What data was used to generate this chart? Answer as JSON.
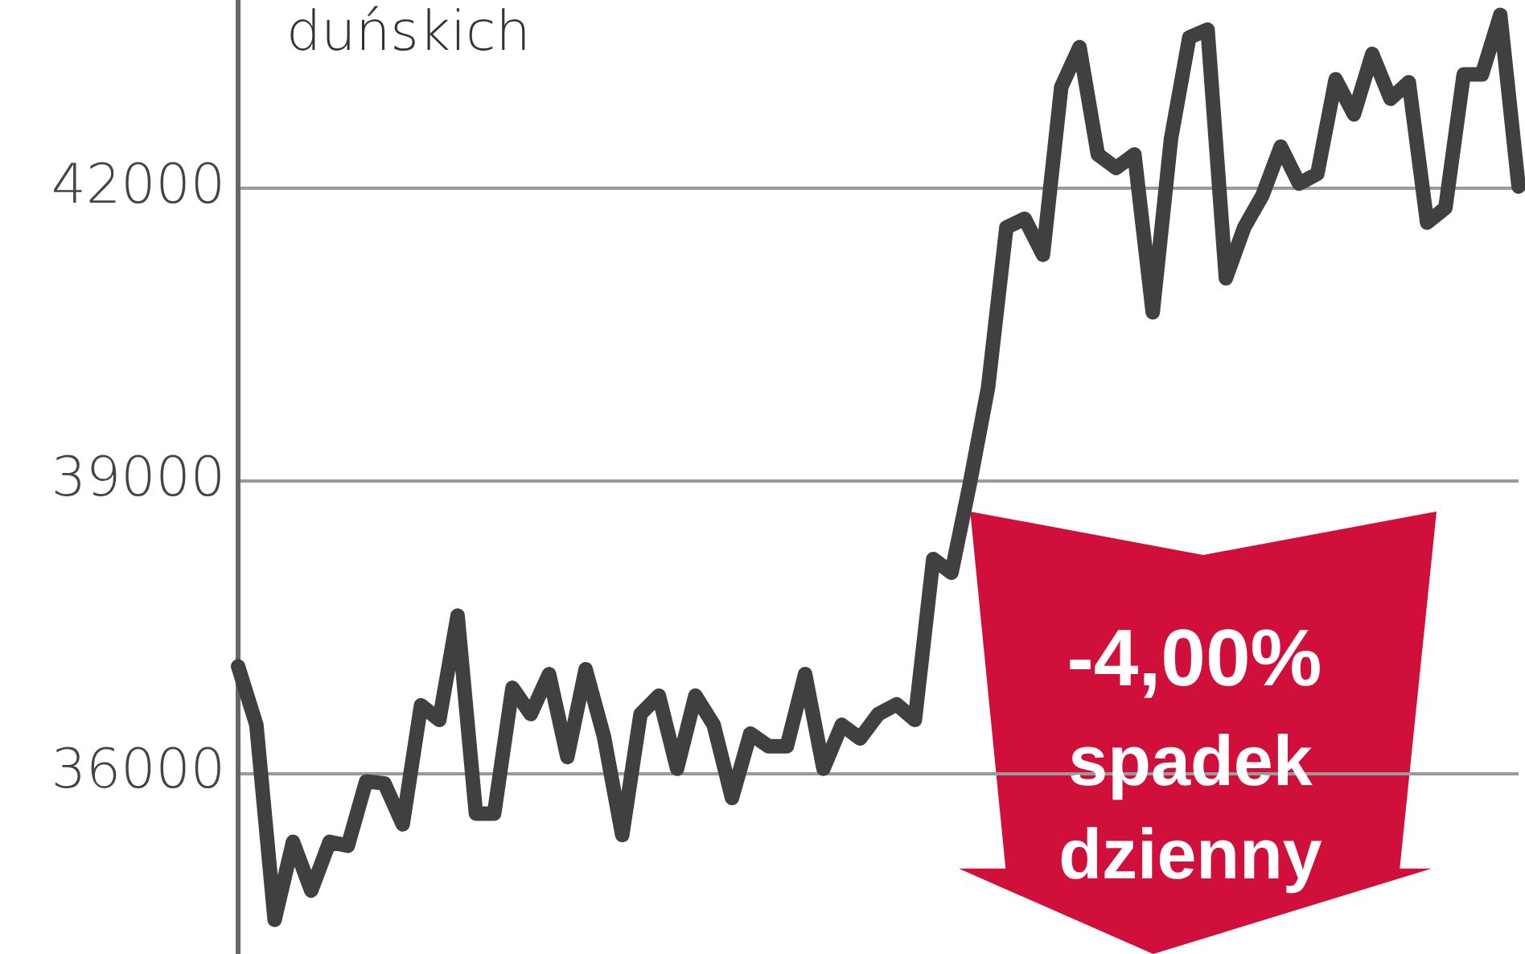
{
  "chart_data": {
    "type": "line",
    "title": "duńskich",
    "categories": [
      null,
      null,
      null,
      null,
      null,
      null,
      null,
      null,
      null,
      null,
      null,
      null,
      null,
      null,
      null,
      null,
      null,
      null,
      null,
      null,
      null,
      null,
      null,
      null,
      null,
      null,
      null,
      null,
      null,
      null,
      null,
      null,
      null,
      null,
      null,
      null,
      null,
      null,
      null,
      null,
      null,
      null,
      null,
      null,
      null,
      null,
      null,
      null,
      null,
      null,
      null,
      null,
      null,
      null,
      null,
      null,
      null,
      null,
      null,
      null,
      null,
      null,
      null,
      null,
      null,
      null,
      null,
      null,
      null,
      null,
      null
    ],
    "series": [
      {
        "color": "#404040",
        "values": [
          37100,
          36500,
          34500,
          35300,
          34800,
          35300,
          35260,
          35920,
          35900,
          35480,
          36700,
          36550,
          37620,
          35590,
          35590,
          36880,
          36610,
          37020,
          36170,
          37070,
          36380,
          35370,
          36610,
          36800,
          36050,
          36800,
          36500,
          35750,
          36410,
          36280,
          36280,
          37020,
          36050,
          36500,
          36360,
          36610,
          36710,
          36550,
          38200,
          38060,
          38970,
          39960,
          41600,
          41690,
          41320,
          43040,
          43450,
          42350,
          42210,
          42350,
          40730,
          42510,
          43550,
          43630,
          41080,
          41600,
          41930,
          42430,
          42050,
          42150,
          43120,
          42760,
          43380,
          42920,
          43090,
          41650,
          41800,
          43170,
          43170,
          43780,
          42020
        ]
      }
    ],
    "ylim": [
      34140,
      43910
    ],
    "yticks": [
      36000,
      39000,
      42000
    ],
    "grid": "y",
    "legend": false,
    "marker": "none",
    "line_style": "solid",
    "tick_labels": "y",
    "annotations": [
      "-4,00%",
      "spadek dzienny"
    ]
  }
}
